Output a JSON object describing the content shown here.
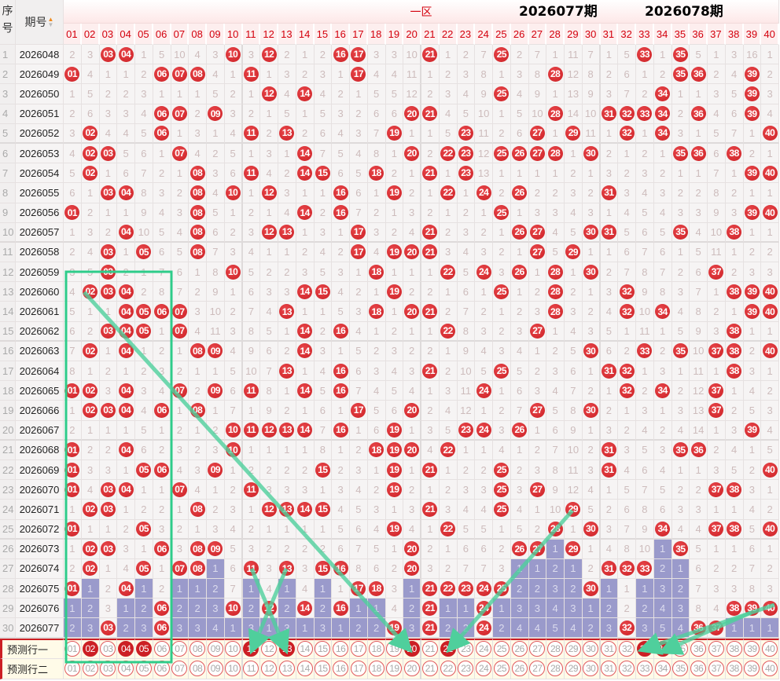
{
  "header": {
    "seq_label": "序号",
    "issue_label": "期号",
    "zone_label": "一区",
    "numbers": [
      "01",
      "02",
      "03",
      "04",
      "05",
      "06",
      "07",
      "08",
      "09",
      "10",
      "11",
      "12",
      "13",
      "14",
      "15",
      "16",
      "17",
      "18",
      "19",
      "20",
      "21",
      "22",
      "23",
      "24",
      "25",
      "26",
      "27",
      "28",
      "29",
      "30",
      "31",
      "32",
      "33",
      "34",
      "35",
      "36",
      "37",
      "38",
      "39",
      "40"
    ]
  },
  "initial_omissions": [
    2,
    3,
    0,
    0,
    1,
    5,
    10,
    4,
    3,
    0,
    3,
    0,
    2,
    1,
    2,
    0,
    0,
    3,
    3,
    10,
    0,
    1,
    2,
    7,
    0,
    2,
    7,
    1,
    11,
    7,
    1,
    5,
    0,
    1,
    0,
    5,
    1,
    3,
    16,
    1
  ],
  "rows": [
    {
      "seq": "1",
      "issue": "2026048",
      "hits": [
        3,
        4,
        10,
        12,
        16,
        17,
        21,
        25,
        33,
        35
      ]
    },
    {
      "seq": "2",
      "issue": "2026049",
      "hits": [
        1,
        6,
        7,
        8,
        11,
        17,
        28,
        35,
        36,
        39
      ]
    },
    {
      "seq": "3",
      "issue": "2026050",
      "hits": [
        12,
        14,
        25,
        34,
        39
      ]
    },
    {
      "seq": "4",
      "issue": "2026051",
      "hits": [
        6,
        7,
        9,
        20,
        21,
        28,
        31,
        32,
        33,
        34,
        36,
        39
      ]
    },
    {
      "seq": "5",
      "issue": "2026052",
      "hits": [
        2,
        6,
        11,
        13,
        19,
        23,
        27,
        29,
        32,
        34,
        40
      ]
    },
    {
      "seq": "6",
      "issue": "2026053",
      "hits": [
        2,
        3,
        7,
        14,
        20,
        22,
        23,
        25,
        26,
        27,
        28,
        30,
        35,
        36,
        38
      ]
    },
    {
      "seq": "7",
      "issue": "2026054",
      "hits": [
        2,
        8,
        11,
        14,
        15,
        18,
        21,
        23,
        39,
        40
      ]
    },
    {
      "seq": "8",
      "issue": "2026055",
      "hits": [
        3,
        4,
        8,
        10,
        12,
        16,
        19,
        22,
        24,
        26,
        31
      ]
    },
    {
      "seq": "9",
      "issue": "2026056",
      "hits": [
        1,
        8,
        14,
        16,
        25,
        39,
        40
      ]
    },
    {
      "seq": "10",
      "issue": "2026057",
      "hits": [
        4,
        8,
        12,
        13,
        17,
        21,
        26,
        27,
        30,
        31,
        35,
        38
      ]
    },
    {
      "seq": "11",
      "issue": "2026058",
      "hits": [
        3,
        5,
        8,
        17,
        19,
        20,
        21,
        27,
        29
      ]
    },
    {
      "seq": "12",
      "issue": "2026059",
      "hits": [
        3,
        10,
        18,
        22,
        24,
        26,
        28,
        30,
        37
      ]
    },
    {
      "seq": "13",
      "issue": "2026060",
      "hits": [
        2,
        3,
        4,
        14,
        15,
        19,
        25,
        28,
        32,
        38,
        39,
        40
      ]
    },
    {
      "seq": "14",
      "issue": "2026061",
      "hits": [
        4,
        5,
        6,
        7,
        13,
        18,
        20,
        21,
        28,
        32,
        34,
        39,
        40
      ]
    },
    {
      "seq": "15",
      "issue": "2026062",
      "hits": [
        3,
        4,
        5,
        7,
        14,
        16,
        22,
        27,
        38
      ]
    },
    {
      "seq": "16",
      "issue": "2026063",
      "hits": [
        2,
        4,
        8,
        9,
        14,
        30,
        33,
        35,
        37,
        38,
        40
      ]
    },
    {
      "seq": "17",
      "issue": "2026064",
      "hits": [
        13,
        16,
        21,
        25,
        31,
        32,
        38
      ]
    },
    {
      "seq": "18",
      "issue": "2026065",
      "hits": [
        1,
        2,
        4,
        7,
        9,
        11,
        14,
        16,
        24,
        32,
        34,
        37
      ]
    },
    {
      "seq": "19",
      "issue": "2026066",
      "hits": [
        2,
        3,
        4,
        6,
        8,
        17,
        20,
        27,
        30,
        37
      ]
    },
    {
      "seq": "20",
      "issue": "2026067",
      "hits": [
        10,
        11,
        12,
        13,
        14,
        16,
        19,
        23,
        24,
        26,
        39
      ]
    },
    {
      "seq": "21",
      "issue": "2026068",
      "hits": [
        1,
        4,
        10,
        18,
        19,
        20,
        22,
        31,
        35,
        36
      ]
    },
    {
      "seq": "22",
      "issue": "2026069",
      "hits": [
        1,
        5,
        6,
        9,
        15,
        19,
        21,
        25,
        31,
        40
      ]
    },
    {
      "seq": "23",
      "issue": "2026070",
      "hits": [
        1,
        3,
        4,
        7,
        11,
        19,
        25,
        27,
        37,
        38
      ]
    },
    {
      "seq": "24",
      "issue": "2026071",
      "hits": [
        2,
        3,
        8,
        12,
        13,
        14,
        15,
        21,
        25,
        29
      ]
    },
    {
      "seq": "25",
      "issue": "2026072",
      "hits": [
        1,
        5,
        19,
        22,
        28,
        30,
        34,
        37,
        38,
        40
      ]
    },
    {
      "seq": "26",
      "issue": "2026073",
      "hits": [
        2,
        3,
        6,
        8,
        9,
        20,
        26,
        27,
        29,
        35
      ]
    },
    {
      "seq": "27",
      "issue": "2026074",
      "hits": [
        2,
        5,
        7,
        8,
        11,
        13,
        15,
        16,
        20,
        31,
        32,
        33
      ]
    },
    {
      "seq": "28",
      "issue": "2026075",
      "hits": [
        1,
        4,
        17,
        18,
        21,
        22,
        23,
        24,
        25,
        30
      ]
    },
    {
      "seq": "29",
      "issue": "2026076",
      "hits": [
        6,
        10,
        12,
        14,
        16,
        21,
        24,
        38,
        39,
        40
      ]
    },
    {
      "seq": "30",
      "issue": "2026077",
      "hits": [
        3,
        6,
        19,
        21,
        24,
        32,
        36,
        37
      ]
    }
  ],
  "predictions": [
    {
      "label": "预测行一",
      "selected": [
        2,
        4,
        5,
        11,
        13,
        20,
        22,
        33,
        34
      ]
    },
    {
      "label": "预测行二",
      "selected": []
    }
  ],
  "annotations": {
    "current": "2026077期",
    "next": "2026078期"
  },
  "colors": {
    "ball": "#cc1f24",
    "layer": "#9a9acb",
    "overlay": "#2ecc8a",
    "header_text": "#d4000d"
  }
}
